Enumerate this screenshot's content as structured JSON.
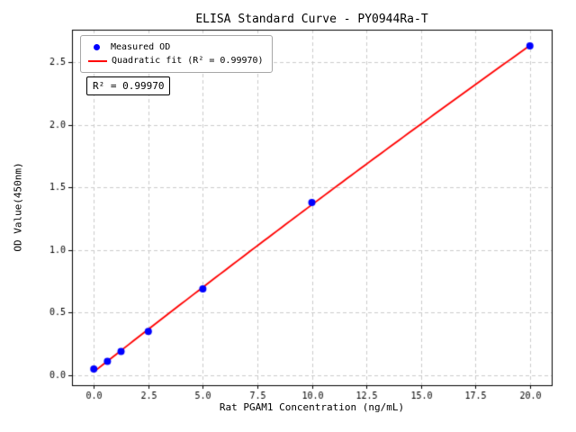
{
  "chart_data": {
    "type": "scatter",
    "title": "ELISA Standard Curve - PY0944Ra-T",
    "xlabel": "Rat PGAM1 Concentration (ng/mL)",
    "ylabel": "OD Value(450nm)",
    "xlim": [
      -1.0,
      21.0
    ],
    "ylim": [
      -0.08,
      2.76
    ],
    "xticks": [
      0.0,
      2.5,
      5.0,
      7.5,
      10.0,
      12.5,
      15.0,
      17.5,
      20.0
    ],
    "xtick_labels": [
      "0.0",
      "2.5",
      "5.0",
      "7.5",
      "10.0",
      "12.5",
      "15.0",
      "17.5",
      "20.0"
    ],
    "yticks": [
      0.0,
      0.5,
      1.0,
      1.5,
      2.0,
      2.5
    ],
    "ytick_labels": [
      "0.0",
      "0.5",
      "1.0",
      "1.5",
      "2.0",
      "2.5"
    ],
    "grid": true,
    "grid_color": "#cccccc",
    "legend_position": "upper left",
    "series": [
      {
        "name": "Measured OD",
        "type": "scatter",
        "color": "#0000ff",
        "x": [
          0,
          0.625,
          1.25,
          2.5,
          5,
          10,
          20
        ],
        "y": [
          0.05,
          0.11,
          0.19,
          0.35,
          0.69,
          1.38,
          2.63
        ]
      },
      {
        "name": "Quadratic fit (R² = 0.99970)",
        "type": "line",
        "fit": "quadratic",
        "color": "#ff0000"
      }
    ],
    "annotation": "R² = 0.99970"
  }
}
